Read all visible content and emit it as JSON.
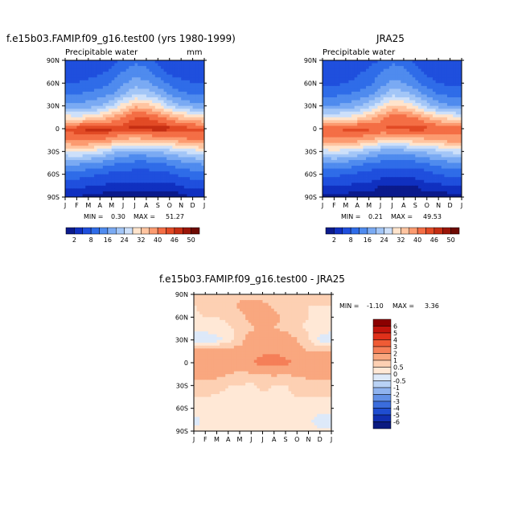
{
  "panels": [
    {
      "title": "f.e15b03.FAMIP.f09_g16.test00 (yrs 1980-1999)",
      "subtitle": "Precipitable water",
      "units": "mm",
      "min_label": "MIN =",
      "min_value": "0.30",
      "max_label": "MAX =",
      "max_value": "51.27"
    },
    {
      "title": "JRA25",
      "subtitle": "Precipitable water",
      "units": "",
      "min_label": "MIN =",
      "min_value": "0.21",
      "max_label": "MAX =",
      "max_value": "49.53"
    },
    {
      "title": "f.e15b03.FAMIP.f09_g16.test00 - JRA25",
      "subtitle": "",
      "units": "",
      "min_label": "MIN =",
      "min_value": "-1.10",
      "max_label": "MAX =",
      "max_value": "3.36"
    }
  ],
  "chart_data": [
    {
      "type": "heatmap",
      "name": "model",
      "x": [
        "J",
        "F",
        "M",
        "A",
        "M",
        "J",
        "J",
        "A",
        "S",
        "O",
        "N",
        "D",
        "J"
      ],
      "y_ticks": [
        "90N",
        "60N",
        "30N",
        "0",
        "30S",
        "60S",
        "90S"
      ],
      "latitudes": [
        90,
        75,
        60,
        45,
        30,
        15,
        0,
        -15,
        -30,
        -45,
        -60,
        -75,
        -90
      ],
      "field_min": 0.3,
      "field_max": 51.27,
      "note_shape": "tropical maximum near equator migrating north in JJA",
      "colorbar_labels": [
        "2",
        "8",
        "16",
        "24",
        "32",
        "40",
        "46",
        "50"
      ],
      "colorbar_levels": [
        2,
        4,
        8,
        12,
        16,
        20,
        24,
        28,
        32,
        36,
        40,
        44,
        46,
        48,
        50
      ],
      "colorbar_colors": [
        "#0b1a8c",
        "#1030c0",
        "#1f4fdd",
        "#2f6ce8",
        "#4f8bee",
        "#7aaaf3",
        "#a3c6f7",
        "#cde0fa",
        "#ffe4cc",
        "#ffc4a0",
        "#fc9b70",
        "#f46e45",
        "#e24a25",
        "#c52e13",
        "#9a1508",
        "#6e0a03"
      ],
      "grid": [
        [
          4,
          4,
          4,
          5,
          6,
          9,
          11,
          10,
          7,
          5,
          4,
          4,
          4
        ],
        [
          5,
          5,
          6,
          7,
          9,
          12,
          14,
          13,
          10,
          7,
          6,
          5,
          5
        ],
        [
          8,
          8,
          9,
          10,
          12,
          15,
          18,
          17,
          14,
          11,
          9,
          8,
          8
        ],
        [
          12,
          12,
          13,
          14,
          16,
          20,
          24,
          23,
          20,
          16,
          13,
          12,
          12
        ],
        [
          17,
          17,
          18,
          20,
          24,
          30,
          35,
          34,
          30,
          24,
          20,
          18,
          17
        ],
        [
          30,
          29,
          30,
          32,
          36,
          40,
          44,
          44,
          42,
          38,
          34,
          32,
          30
        ],
        [
          45,
          46,
          47,
          48,
          47,
          46,
          47,
          47,
          48,
          47,
          46,
          45,
          45
        ],
        [
          40,
          41,
          41,
          40,
          38,
          35,
          34,
          35,
          36,
          37,
          38,
          40,
          40
        ],
        [
          28,
          29,
          28,
          26,
          22,
          19,
          18,
          19,
          20,
          22,
          24,
          26,
          28
        ],
        [
          17,
          17,
          16,
          15,
          13,
          12,
          11,
          11,
          12,
          13,
          15,
          16,
          17
        ],
        [
          10,
          10,
          9,
          8,
          7,
          6,
          6,
          6,
          6,
          7,
          9,
          10,
          10
        ],
        [
          5,
          5,
          4,
          4,
          3,
          3,
          3,
          3,
          3,
          3,
          4,
          5,
          5
        ],
        [
          2,
          2,
          1,
          1,
          1,
          1,
          1,
          1,
          1,
          1,
          1,
          2,
          2
        ]
      ]
    },
    {
      "type": "heatmap",
      "name": "JRA25",
      "x": [
        "J",
        "F",
        "M",
        "A",
        "M",
        "J",
        "J",
        "A",
        "S",
        "O",
        "N",
        "D",
        "J"
      ],
      "y_ticks": [
        "90N",
        "60N",
        "30N",
        "0",
        "30S",
        "60S",
        "90S"
      ],
      "latitudes": [
        90,
        75,
        60,
        45,
        30,
        15,
        0,
        -15,
        -30,
        -45,
        -60,
        -75,
        -90
      ],
      "field_min": 0.21,
      "field_max": 49.53,
      "colorbar_labels": [
        "2",
        "8",
        "16",
        "24",
        "32",
        "40",
        "46",
        "50"
      ],
      "grid": [
        [
          4,
          4,
          4,
          5,
          6,
          8,
          11,
          10,
          7,
          5,
          4,
          4,
          4
        ],
        [
          5,
          5,
          6,
          7,
          9,
          12,
          14,
          13,
          10,
          7,
          6,
          5,
          5
        ],
        [
          7,
          7,
          8,
          9,
          11,
          14,
          17,
          16,
          13,
          10,
          8,
          7,
          7
        ],
        [
          11,
          11,
          12,
          13,
          15,
          19,
          23,
          22,
          19,
          15,
          12,
          11,
          11
        ],
        [
          16,
          16,
          17,
          19,
          22,
          28,
          33,
          32,
          28,
          22,
          18,
          16,
          16
        ],
        [
          28,
          28,
          29,
          30,
          34,
          38,
          42,
          42,
          40,
          36,
          32,
          30,
          28
        ],
        [
          43,
          44,
          45,
          46,
          45,
          44,
          45,
          45,
          46,
          45,
          44,
          43,
          43
        ],
        [
          38,
          39,
          39,
          38,
          36,
          33,
          32,
          33,
          34,
          35,
          36,
          38,
          38
        ],
        [
          26,
          27,
          26,
          24,
          21,
          18,
          17,
          18,
          19,
          21,
          23,
          25,
          26
        ],
        [
          16,
          16,
          15,
          14,
          12,
          11,
          10,
          10,
          11,
          12,
          14,
          15,
          16
        ],
        [
          9,
          9,
          8,
          7,
          6,
          5,
          5,
          5,
          5,
          6,
          8,
          9,
          9
        ],
        [
          4,
          4,
          4,
          3,
          3,
          2,
          2,
          2,
          2,
          3,
          3,
          4,
          4
        ],
        [
          1,
          1,
          1,
          1,
          1,
          1,
          1,
          1,
          1,
          1,
          1,
          1,
          1
        ]
      ]
    },
    {
      "type": "heatmap",
      "name": "difference",
      "x": [
        "J",
        "F",
        "M",
        "A",
        "M",
        "J",
        "J",
        "A",
        "S",
        "O",
        "N",
        "D",
        "J"
      ],
      "y_ticks": [
        "90N",
        "60N",
        "30N",
        "0",
        "30S",
        "60S",
        "90S"
      ],
      "latitudes": [
        90,
        75,
        60,
        45,
        30,
        15,
        0,
        -15,
        -30,
        -45,
        -60,
        -75,
        -90
      ],
      "field_min": -1.1,
      "field_max": 3.36,
      "colorbar_labels": [
        "6",
        "5",
        "4",
        "3",
        "2",
        "1",
        "0.5",
        "0",
        "-0.5",
        "-1",
        "-2",
        "-3",
        "-4",
        "-5",
        "-6"
      ],
      "colorbar_colors": [
        "#8b0000",
        "#c1140c",
        "#e0301a",
        "#ef5b35",
        "#f57f58",
        "#f9a77f",
        "#fdd0b3",
        "#ffe8d6",
        "#dde9f9",
        "#b9d2f5",
        "#8fb3ef",
        "#6290e6",
        "#3b6ddc",
        "#1f4dd0",
        "#112fb0",
        "#0a1a80"
      ],
      "grid": [
        [
          0.6,
          0.6,
          0.7,
          0.8,
          0.9,
          0.8,
          0.7,
          0.6,
          0.5,
          0.6,
          0.6,
          0.6,
          0.6
        ],
        [
          0.5,
          0.6,
          0.6,
          0.7,
          1.1,
          1.3,
          1.2,
          0.9,
          0.7,
          0.6,
          0.5,
          0.5,
          0.5
        ],
        [
          0.4,
          0.5,
          0.5,
          0.6,
          0.8,
          1.2,
          1.4,
          1.2,
          0.9,
          0.6,
          0.5,
          0.4,
          0.4
        ],
        [
          0.3,
          0.2,
          0.3,
          0.4,
          0.6,
          0.9,
          1.1,
          1.0,
          0.8,
          0.6,
          0.4,
          0.3,
          0.3
        ],
        [
          -0.6,
          -0.4,
          -0.2,
          0.2,
          0.7,
          1.4,
          1.8,
          1.9,
          1.5,
          1.0,
          0.6,
          -0.2,
          -0.6
        ],
        [
          1.2,
          1.4,
          1.5,
          1.4,
          1.3,
          1.6,
          1.8,
          1.9,
          1.7,
          1.3,
          1.0,
          1.0,
          1.2
        ],
        [
          1.4,
          1.6,
          1.8,
          1.7,
          1.5,
          2.0,
          2.3,
          2.5,
          2.2,
          1.9,
          1.8,
          1.7,
          1.4
        ],
        [
          1.1,
          1.3,
          1.2,
          1.0,
          0.8,
          0.9,
          1.0,
          1.1,
          1.0,
          1.1,
          1.2,
          1.3,
          1.1
        ],
        [
          0.9,
          0.8,
          0.7,
          0.5,
          0.5,
          0.4,
          0.6,
          0.5,
          0.5,
          0.6,
          0.7,
          0.8,
          0.9
        ],
        [
          0.5,
          0.5,
          0.4,
          0.4,
          0.3,
          0.3,
          0.4,
          0.4,
          0.4,
          0.5,
          0.5,
          0.5,
          0.5
        ],
        [
          0.3,
          0.2,
          0.3,
          0.3,
          0.2,
          0.2,
          0.2,
          0.3,
          0.3,
          0.3,
          0.4,
          0.3,
          0.3
        ],
        [
          -0.2,
          0.1,
          0.2,
          0.2,
          0.2,
          0.2,
          0.2,
          0.2,
          0.2,
          0.2,
          0.1,
          -0.3,
          -0.2
        ],
        [
          0.1,
          0.1,
          0.1,
          0.1,
          0.1,
          0.1,
          0.1,
          0.1,
          0.1,
          0.1,
          0.1,
          0.1,
          0.1
        ]
      ]
    }
  ]
}
